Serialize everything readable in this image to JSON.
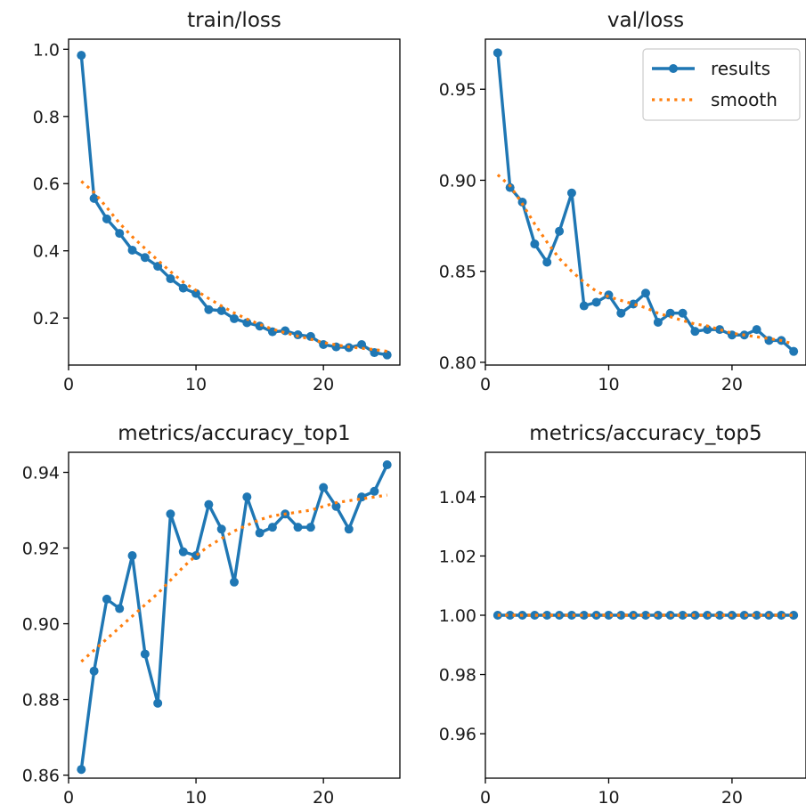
{
  "chart_data": [
    {
      "type": "line",
      "title": "train/loss",
      "xlim": [
        0,
        26
      ],
      "ylim": [
        0.06,
        1.03
      ],
      "xticks": [
        0,
        10,
        20
      ],
      "yticks": [
        0.2,
        0.4,
        0.6,
        0.8,
        1.0
      ],
      "ytick_labels": [
        "0.2",
        "0.4",
        "0.6",
        "0.8",
        "1.0"
      ],
      "legend": null,
      "series": [
        {
          "name": "results",
          "style": "line-marker",
          "x": [
            1,
            2,
            3,
            4,
            5,
            6,
            7,
            8,
            9,
            10,
            11,
            12,
            13,
            14,
            15,
            16,
            17,
            18,
            19,
            20,
            21,
            22,
            23,
            24,
            25
          ],
          "y": [
            0.982,
            0.556,
            0.495,
            0.452,
            0.402,
            0.38,
            0.354,
            0.317,
            0.289,
            0.273,
            0.225,
            0.222,
            0.198,
            0.186,
            0.176,
            0.159,
            0.162,
            0.15,
            0.145,
            0.121,
            0.114,
            0.112,
            0.121,
            0.097,
            0.09
          ]
        },
        {
          "name": "smooth",
          "style": "dotted",
          "x": [
            1,
            2,
            3,
            4,
            5,
            6,
            7,
            8,
            9,
            10,
            11,
            12,
            13,
            14,
            15,
            16,
            17,
            18,
            19,
            20,
            21,
            22,
            23,
            24,
            25
          ],
          "y": [
            0.607,
            0.574,
            0.529,
            0.482,
            0.442,
            0.407,
            0.372,
            0.338,
            0.307,
            0.282,
            0.258,
            0.236,
            0.215,
            0.197,
            0.181,
            0.167,
            0.156,
            0.146,
            0.137,
            0.127,
            0.12,
            0.114,
            0.11,
            0.106,
            0.101
          ]
        }
      ]
    },
    {
      "type": "line",
      "title": "val/loss",
      "xlim": [
        0,
        26
      ],
      "ylim": [
        0.7985,
        0.9775
      ],
      "xticks": [
        0,
        10,
        20
      ],
      "yticks": [
        0.8,
        0.85,
        0.9,
        0.95
      ],
      "ytick_labels": [
        "0.80",
        "0.85",
        "0.90",
        "0.95"
      ],
      "legend": "top-right",
      "legend_entries": [
        "results",
        "smooth"
      ],
      "series": [
        {
          "name": "results",
          "style": "line-marker",
          "x": [
            1,
            2,
            3,
            4,
            5,
            6,
            7,
            8,
            9,
            10,
            11,
            12,
            13,
            14,
            15,
            16,
            17,
            18,
            19,
            20,
            21,
            22,
            23,
            24,
            25
          ],
          "y": [
            0.97,
            0.896,
            0.888,
            0.865,
            0.855,
            0.872,
            0.893,
            0.831,
            0.833,
            0.837,
            0.827,
            0.832,
            0.838,
            0.822,
            0.827,
            0.827,
            0.817,
            0.818,
            0.818,
            0.815,
            0.815,
            0.818,
            0.812,
            0.812,
            0.806
          ]
        },
        {
          "name": "smooth",
          "style": "dotted",
          "x": [
            1,
            2,
            3,
            4,
            5,
            6,
            7,
            8,
            9,
            10,
            11,
            12,
            13,
            14,
            15,
            16,
            17,
            18,
            19,
            20,
            21,
            22,
            23,
            24,
            25
          ],
          "y": [
            0.903,
            0.897,
            0.887,
            0.876,
            0.866,
            0.857,
            0.85,
            0.844,
            0.839,
            0.836,
            0.834,
            0.832,
            0.83,
            0.827,
            0.825,
            0.823,
            0.821,
            0.82,
            0.818,
            0.816,
            0.815,
            0.814,
            0.813,
            0.812,
            0.81
          ]
        }
      ]
    },
    {
      "type": "line",
      "title": "metrics/accuracy_top1",
      "xlim": [
        0,
        26
      ],
      "ylim": [
        0.8592,
        0.9453
      ],
      "xticks": [
        0,
        10,
        20
      ],
      "yticks": [
        0.86,
        0.88,
        0.9,
        0.92,
        0.94
      ],
      "ytick_labels": [
        "0.86",
        "0.88",
        "0.90",
        "0.92",
        "0.94"
      ],
      "legend": null,
      "series": [
        {
          "name": "results",
          "style": "line-marker",
          "x": [
            1,
            2,
            3,
            4,
            5,
            6,
            7,
            8,
            9,
            10,
            11,
            12,
            13,
            14,
            15,
            16,
            17,
            18,
            19,
            20,
            21,
            22,
            23,
            24,
            25
          ],
          "y": [
            0.8615,
            0.8875,
            0.9065,
            0.904,
            0.918,
            0.892,
            0.879,
            0.929,
            0.919,
            0.918,
            0.9315,
            0.925,
            0.911,
            0.9335,
            0.924,
            0.9255,
            0.929,
            0.9255,
            0.9255,
            0.936,
            0.931,
            0.925,
            0.9335,
            0.935,
            0.942
          ]
        },
        {
          "name": "smooth",
          "style": "dotted",
          "x": [
            1,
            2,
            3,
            4,
            5,
            6,
            7,
            8,
            9,
            10,
            11,
            12,
            13,
            14,
            15,
            16,
            17,
            18,
            19,
            20,
            21,
            22,
            23,
            24,
            25
          ],
          "y": [
            0.89,
            0.893,
            0.896,
            0.899,
            0.902,
            0.905,
            0.908,
            0.9115,
            0.915,
            0.918,
            0.9205,
            0.9225,
            0.9245,
            0.926,
            0.9275,
            0.9285,
            0.929,
            0.9295,
            0.93,
            0.931,
            0.932,
            0.9325,
            0.933,
            0.9335,
            0.934
          ]
        }
      ]
    },
    {
      "type": "line",
      "title": "metrics/accuracy_top5",
      "xlim": [
        0,
        26
      ],
      "ylim": [
        0.945,
        1.055
      ],
      "xticks": [
        0,
        10,
        20
      ],
      "yticks": [
        0.96,
        0.98,
        1.0,
        1.02,
        1.04
      ],
      "ytick_labels": [
        "0.96",
        "0.98",
        "1.00",
        "1.02",
        "1.04"
      ],
      "legend": null,
      "series": [
        {
          "name": "results",
          "style": "line-marker",
          "x": [
            1,
            2,
            3,
            4,
            5,
            6,
            7,
            8,
            9,
            10,
            11,
            12,
            13,
            14,
            15,
            16,
            17,
            18,
            19,
            20,
            21,
            22,
            23,
            24,
            25
          ],
          "y": [
            1,
            1,
            1,
            1,
            1,
            1,
            1,
            1,
            1,
            1,
            1,
            1,
            1,
            1,
            1,
            1,
            1,
            1,
            1,
            1,
            1,
            1,
            1,
            1,
            1
          ]
        },
        {
          "name": "smooth",
          "style": "dotted",
          "x": [
            1,
            2,
            3,
            4,
            5,
            6,
            7,
            8,
            9,
            10,
            11,
            12,
            13,
            14,
            15,
            16,
            17,
            18,
            19,
            20,
            21,
            22,
            23,
            24,
            25
          ],
          "y": [
            1,
            1,
            1,
            1,
            1,
            1,
            1,
            1,
            1,
            1,
            1,
            1,
            1,
            1,
            1,
            1,
            1,
            1,
            1,
            1,
            1,
            1,
            1,
            1,
            1
          ]
        }
      ]
    }
  ],
  "colors": {
    "results": "#1f77b4",
    "smooth": "#ff7f0e",
    "axis": "#000000",
    "legend_border": "#cccccc"
  }
}
